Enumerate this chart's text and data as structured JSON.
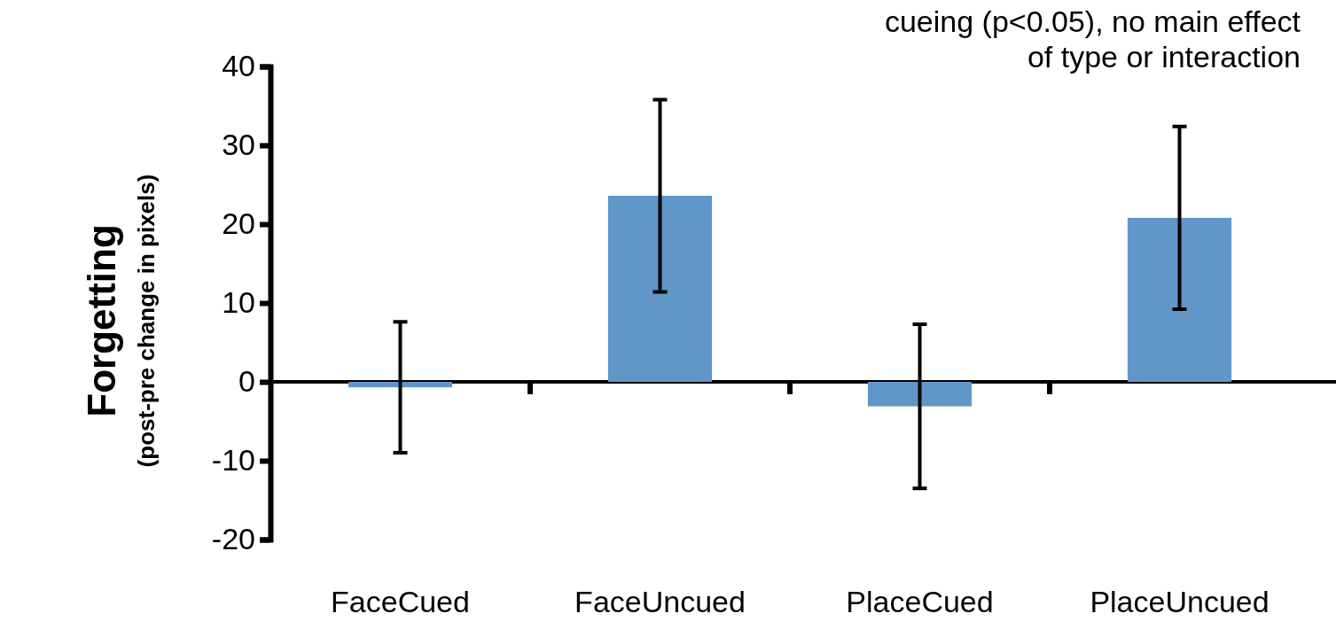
{
  "chart_data": {
    "type": "bar",
    "ylabel": "Forgetting\n(post-pre change in pixels)",
    "categories": [
      "FaceCued",
      "FaceUncued",
      "PlaceCued",
      "PlaceUncued"
    ],
    "values": [
      -0.7,
      23.6,
      -3.1,
      20.8
    ],
    "errors": [
      8.3,
      12.2,
      10.4,
      11.6
    ],
    "color": "#6096c8",
    "ylim": [
      -20,
      40
    ],
    "yticks": [
      -20,
      -10,
      0,
      10,
      20,
      30,
      40
    ],
    "annotations": [
      "cueing (p<0.05), no main effect of type or interaction"
    ]
  }
}
